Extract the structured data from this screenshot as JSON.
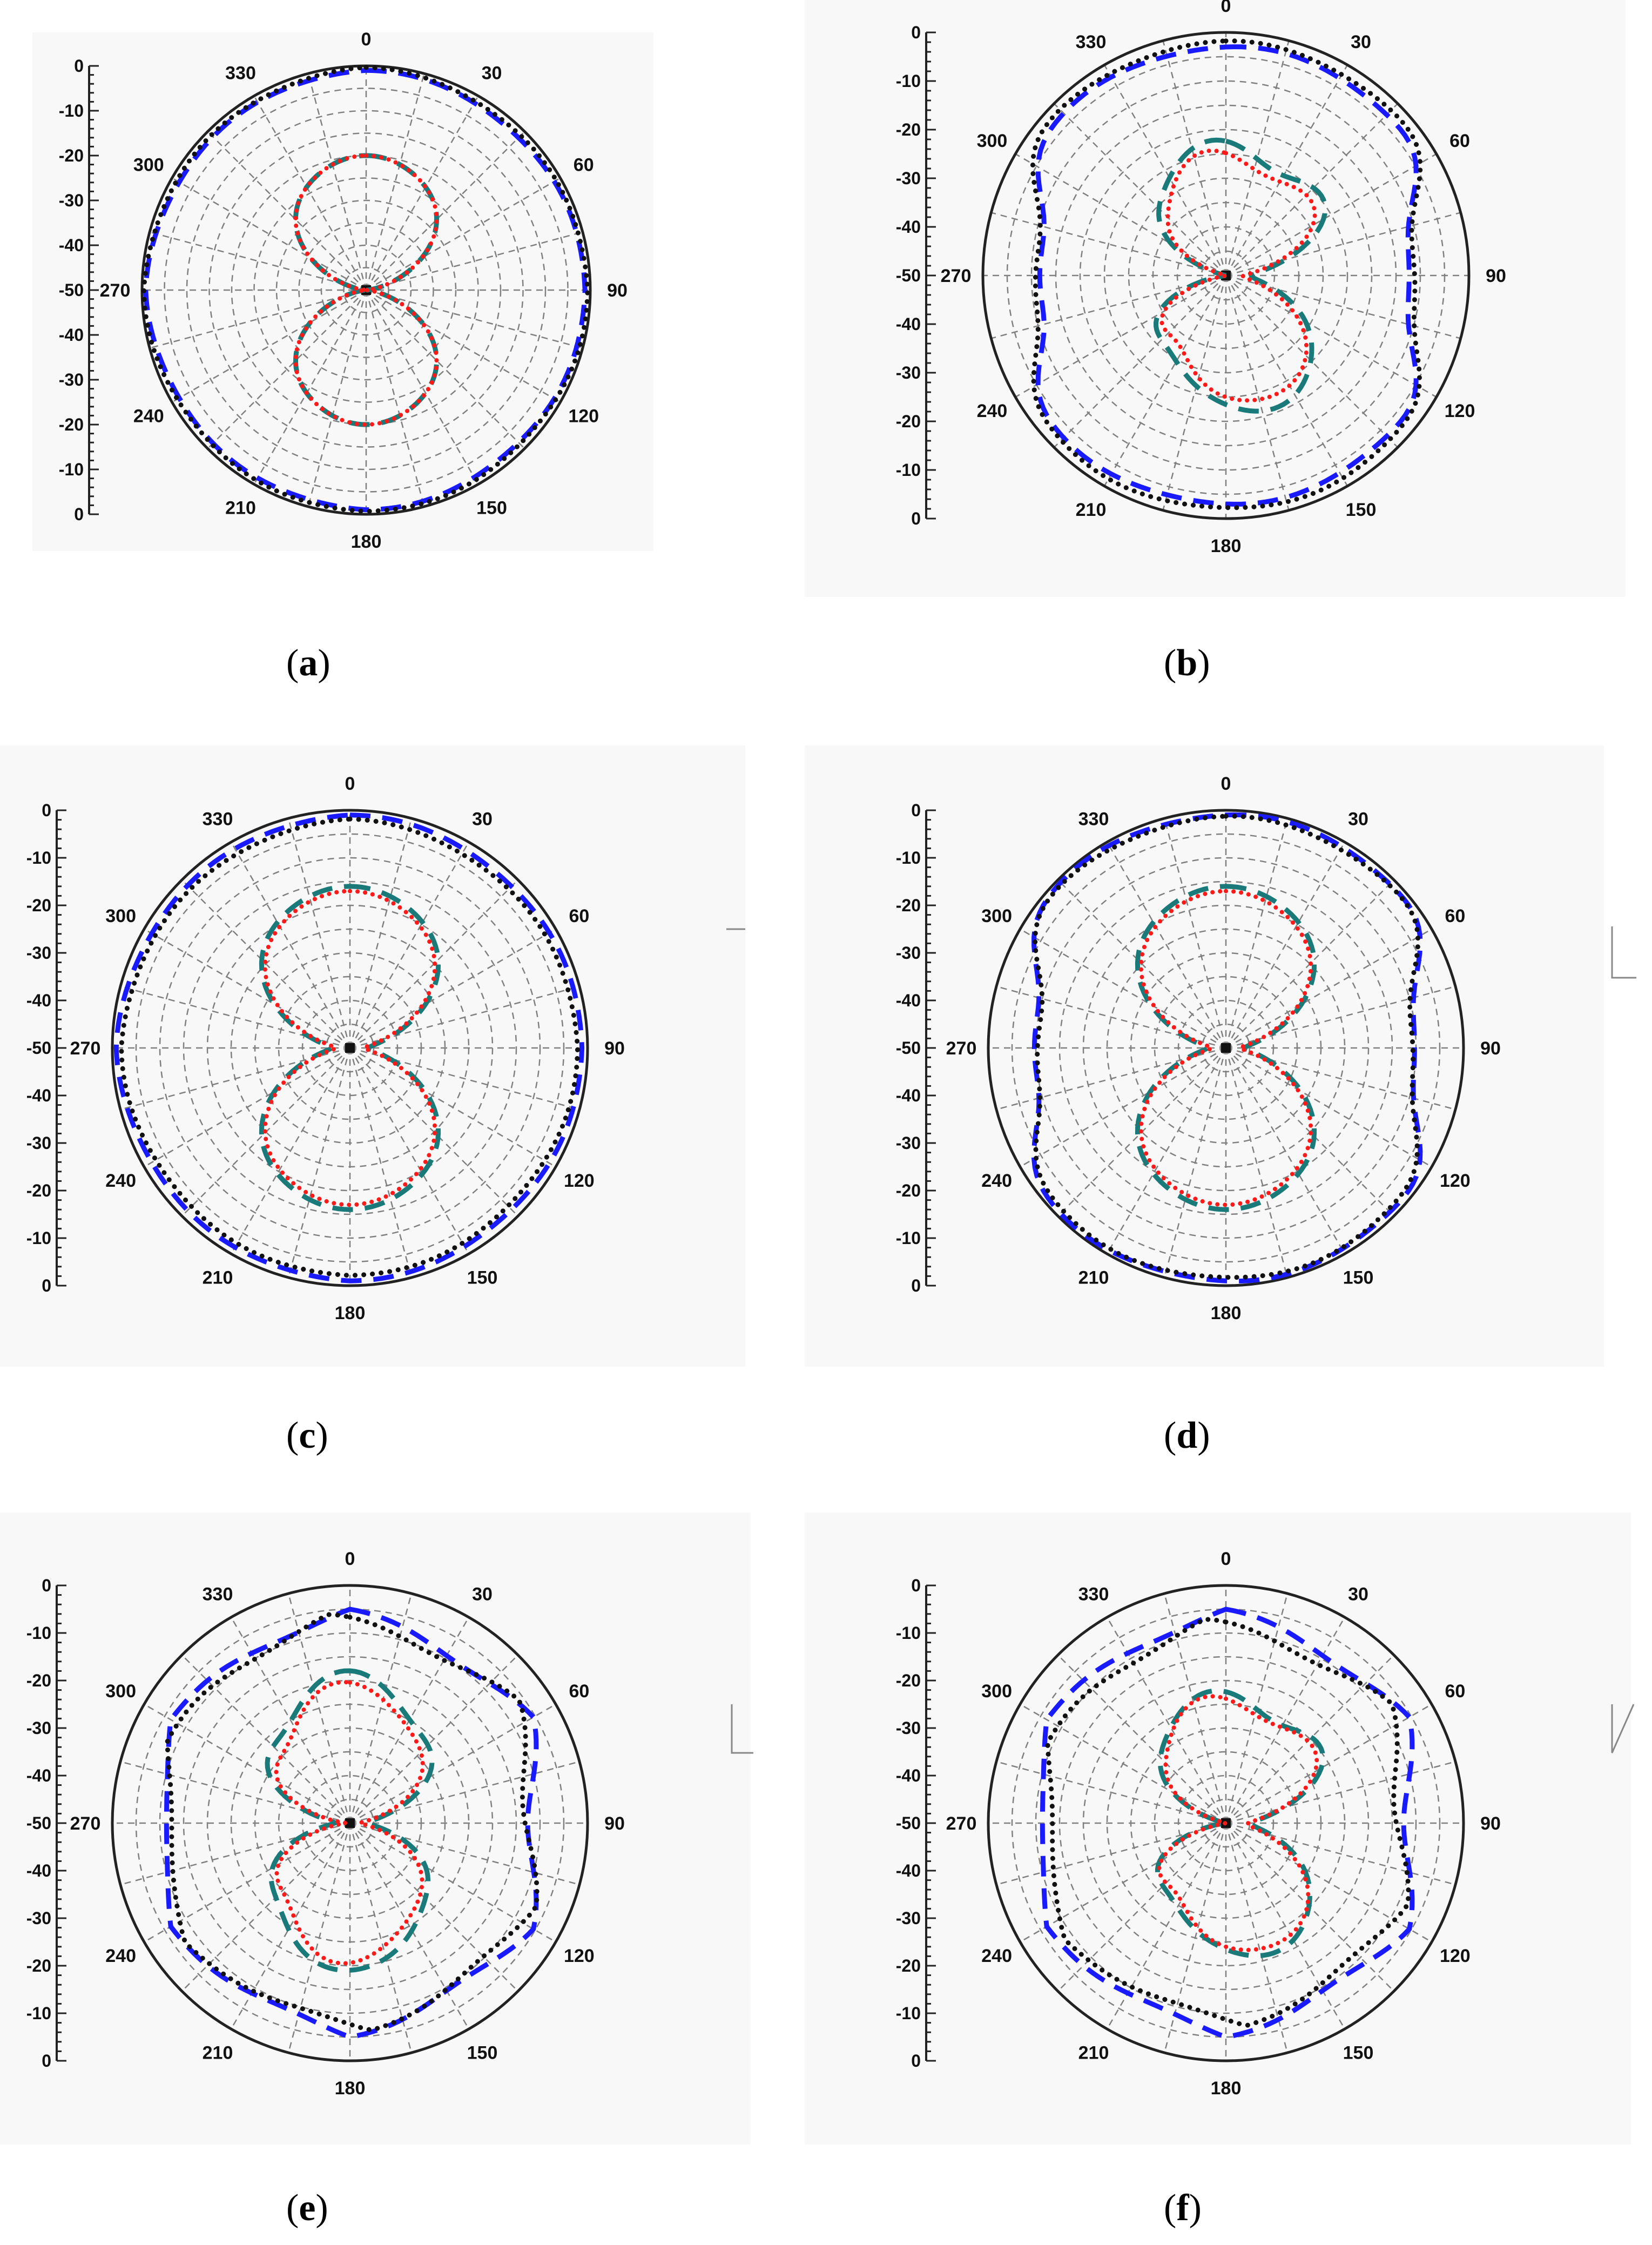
{
  "colors": {
    "blue_dash": "#1a1aff",
    "teal_dash": "#1a7a7a",
    "red_dot": "#ff1a1a",
    "black_dot": "#111111"
  },
  "chart_data": [
    {
      "type": "polar-line",
      "caption_letter": "a",
      "angle_ticks": [
        "0",
        "30",
        "60",
        "90",
        "120",
        "150",
        "180",
        "210",
        "240",
        "270",
        "300",
        "330"
      ],
      "radial_ticks": [
        "0",
        "-10",
        "-20",
        "-30",
        "-40",
        "-50",
        "-40",
        "-30",
        "-20",
        "-10",
        "0"
      ],
      "rlim": [
        -50,
        0
      ],
      "series": [
        {
          "style": "blue-dash",
          "type": "omni",
          "r0": -1
        },
        {
          "style": "black-dot",
          "type": "omni",
          "r0": -0.5
        },
        {
          "style": "teal-dash",
          "type": "dipole",
          "r0": -20,
          "notch": 0.0
        },
        {
          "style": "red-dot",
          "type": "dipole",
          "r0": -20,
          "notch": 0.0
        }
      ]
    },
    {
      "type": "polar-line",
      "caption_letter": "b",
      "angle_ticks": [
        "0",
        "30",
        "60",
        "90",
        "120",
        "150",
        "180",
        "210",
        "240",
        "270",
        "300",
        "330"
      ],
      "radial_ticks": [
        "0",
        "-10",
        "-20",
        "-30",
        "-40",
        "-50",
        "-40",
        "-30",
        "-20",
        "-10",
        "0"
      ],
      "rlim": [
        -50,
        0
      ],
      "series": [
        {
          "style": "blue-dash",
          "type": "lobed",
          "r0": -3
        },
        {
          "style": "black-dot",
          "type": "lobed",
          "r0": -2
        },
        {
          "style": "teal-dash",
          "type": "asym",
          "r0": -22
        },
        {
          "style": "red-dot",
          "type": "asym",
          "r0": -24
        }
      ]
    },
    {
      "type": "polar-line",
      "caption_letter": "c",
      "angle_ticks": [
        "0",
        "30",
        "60",
        "90",
        "120",
        "150",
        "180",
        "210",
        "240",
        "270",
        "300",
        "330"
      ],
      "radial_ticks": [
        "0",
        "-10",
        "-20",
        "-30",
        "-40",
        "-50",
        "-40",
        "-30",
        "-20",
        "-10",
        "0"
      ],
      "rlim": [
        -50,
        0
      ],
      "series": [
        {
          "style": "blue-dash",
          "type": "omni",
          "r0": -1
        },
        {
          "style": "black-dot",
          "type": "omni",
          "r0": -2
        },
        {
          "style": "teal-dash",
          "type": "dipole",
          "r0": -16,
          "notch": 0.0
        },
        {
          "style": "red-dot",
          "type": "dipole",
          "r0": -17,
          "notch": 0.0
        }
      ]
    },
    {
      "type": "polar-line",
      "caption_letter": "d",
      "angle_ticks": [
        "0",
        "30",
        "60",
        "90",
        "120",
        "150",
        "180",
        "210",
        "240",
        "270",
        "300",
        "330"
      ],
      "radial_ticks": [
        "0",
        "-10",
        "-20",
        "-30",
        "-40",
        "-50",
        "-40",
        "-30",
        "-20",
        "-10",
        "0"
      ],
      "rlim": [
        -50,
        0
      ],
      "series": [
        {
          "style": "blue-dash",
          "type": "lobed",
          "r0": -1
        },
        {
          "style": "black-dot",
          "type": "lobed",
          "r0": -1.5
        },
        {
          "style": "teal-dash",
          "type": "dipole",
          "r0": -16,
          "notch": 0.0
        },
        {
          "style": "red-dot",
          "type": "dipole",
          "r0": -17,
          "notch": 0.0
        }
      ]
    },
    {
      "type": "polar-line",
      "caption_letter": "e",
      "angle_ticks": [
        "0",
        "30",
        "60",
        "90",
        "120",
        "150",
        "180",
        "210",
        "240",
        "270",
        "300",
        "330"
      ],
      "radial_ticks": [
        "0",
        "-10",
        "-20",
        "-30",
        "-40",
        "-50",
        "-40",
        "-30",
        "-20",
        "-10",
        "0"
      ],
      "rlim": [
        -50,
        0
      ],
      "series": [
        {
          "style": "blue-dash",
          "type": "wavy",
          "r0": -5
        },
        {
          "style": "black-dot",
          "type": "wavy",
          "r0": -6
        },
        {
          "style": "teal-dash",
          "type": "quad",
          "r0": -20
        },
        {
          "style": "red-dot",
          "type": "quad",
          "r0": -22
        }
      ]
    },
    {
      "type": "polar-line",
      "caption_letter": "f",
      "angle_ticks": [
        "0",
        "30",
        "60",
        "90",
        "120",
        "150",
        "180",
        "210",
        "240",
        "270",
        "300",
        "330"
      ],
      "radial_ticks": [
        "0",
        "-10",
        "-20",
        "-30",
        "-40",
        "-50",
        "-40",
        "-30",
        "-20",
        "-10",
        "0"
      ],
      "rlim": [
        -50,
        0
      ],
      "series": [
        {
          "style": "blue-dash",
          "type": "wavy",
          "r0": -5
        },
        {
          "style": "black-dot",
          "type": "wavy",
          "r0": -7
        },
        {
          "style": "teal-dash",
          "type": "asym",
          "r0": -22
        },
        {
          "style": "red-dot",
          "type": "asym",
          "r0": -23
        }
      ]
    }
  ]
}
